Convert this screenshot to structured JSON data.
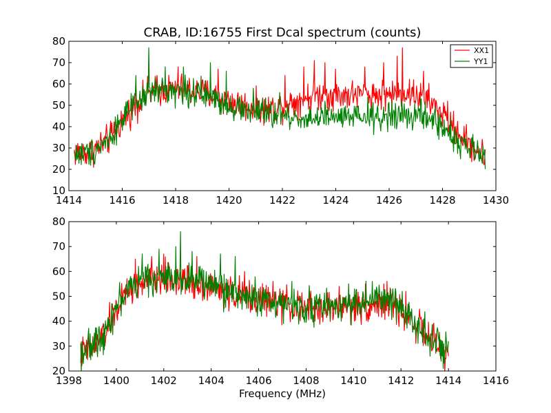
{
  "chart_data": [
    {
      "type": "line",
      "title": "CRAB, ID:16755 First Dcal spectrum (counts)",
      "xlabel": "",
      "ylabel": "",
      "xlim": [
        1414,
        1430
      ],
      "ylim": [
        10,
        80
      ],
      "xticks": [
        1414,
        1416,
        1418,
        1420,
        1422,
        1424,
        1426,
        1428,
        1430
      ],
      "yticks": [
        10,
        20,
        30,
        40,
        50,
        60,
        70,
        80
      ],
      "grid": false,
      "legend": {
        "placement": "top-right",
        "entries": [
          "XX1",
          "YY1"
        ]
      },
      "series": [
        {
          "name": "XX1",
          "color": "#ff0000",
          "points": [
            [
              1414.2,
              28
            ],
            [
              1414.8,
              28
            ],
            [
              1415.5,
              34
            ],
            [
              1416.0,
              43
            ],
            [
              1416.5,
              50
            ],
            [
              1417.0,
              56
            ],
            [
              1417.5,
              57
            ],
            [
              1418.0,
              58
            ],
            [
              1418.5,
              57
            ],
            [
              1419.0,
              56
            ],
            [
              1419.5,
              54
            ],
            [
              1420.0,
              52
            ],
            [
              1420.5,
              50
            ],
            [
              1421.0,
              49
            ],
            [
              1421.5,
              48
            ],
            [
              1422.0,
              50
            ],
            [
              1422.5,
              52
            ],
            [
              1423.0,
              54
            ],
            [
              1423.5,
              55
            ],
            [
              1424.0,
              55
            ],
            [
              1424.5,
              55
            ],
            [
              1425.0,
              55
            ],
            [
              1425.5,
              55
            ],
            [
              1426.0,
              55
            ],
            [
              1426.5,
              56
            ],
            [
              1427.0,
              55
            ],
            [
              1427.5,
              52
            ],
            [
              1428.0,
              46
            ],
            [
              1428.5,
              38
            ],
            [
              1429.0,
              32
            ],
            [
              1429.6,
              26
            ]
          ],
          "spikes": [
            [
              1416.5,
              60
            ],
            [
              1417.3,
              64
            ],
            [
              1418.1,
              68
            ],
            [
              1419.6,
              67
            ],
            [
              1422.1,
              64
            ],
            [
              1422.8,
              68
            ],
            [
              1423.2,
              71
            ],
            [
              1423.6,
              70
            ],
            [
              1424.0,
              67
            ],
            [
              1425.1,
              68
            ],
            [
              1425.8,
              70
            ],
            [
              1426.3,
              73
            ],
            [
              1426.5,
              77
            ],
            [
              1427.3,
              66
            ],
            [
              1428.2,
              52
            ]
          ]
        },
        {
          "name": "YY1",
          "color": "#008000",
          "points": [
            [
              1414.2,
              27
            ],
            [
              1414.8,
              28
            ],
            [
              1415.5,
              34
            ],
            [
              1416.0,
              44
            ],
            [
              1416.5,
              50
            ],
            [
              1417.0,
              56
            ],
            [
              1417.5,
              57
            ],
            [
              1418.0,
              57
            ],
            [
              1418.5,
              56
            ],
            [
              1419.0,
              55
            ],
            [
              1419.5,
              53
            ],
            [
              1420.0,
              50
            ],
            [
              1420.5,
              48
            ],
            [
              1421.0,
              47
            ],
            [
              1421.5,
              46
            ],
            [
              1422.0,
              45
            ],
            [
              1422.5,
              44
            ],
            [
              1423.0,
              44
            ],
            [
              1423.5,
              44
            ],
            [
              1424.0,
              44
            ],
            [
              1424.5,
              44
            ],
            [
              1425.0,
              44
            ],
            [
              1425.5,
              44
            ],
            [
              1426.0,
              45
            ],
            [
              1426.5,
              45
            ],
            [
              1427.0,
              45
            ],
            [
              1427.5,
              44
            ],
            [
              1428.0,
              40
            ],
            [
              1428.5,
              34
            ],
            [
              1429.0,
              30
            ],
            [
              1429.6,
              25
            ]
          ],
          "spikes": [
            [
              1416.5,
              64
            ],
            [
              1417.0,
              77
            ],
            [
              1417.6,
              68
            ],
            [
              1418.3,
              68
            ],
            [
              1419.3,
              70
            ],
            [
              1419.9,
              66
            ],
            [
              1420.9,
              58
            ],
            [
              1421.9,
              56
            ],
            [
              1423.6,
              52
            ],
            [
              1425.2,
              54
            ],
            [
              1426.1,
              52
            ],
            [
              1427.2,
              53
            ]
          ]
        }
      ]
    },
    {
      "type": "line",
      "title": "",
      "xlabel": "Frequency (MHz)",
      "ylabel": "",
      "xlim": [
        1398,
        1416
      ],
      "ylim": [
        20,
        80
      ],
      "xticks": [
        1398,
        1400,
        1402,
        1404,
        1406,
        1408,
        1410,
        1412,
        1414,
        1416
      ],
      "yticks": [
        20,
        30,
        40,
        50,
        60,
        70,
        80
      ],
      "grid": false,
      "legend": null,
      "series": [
        {
          "name": "XX1",
          "color": "#ff0000",
          "points": [
            [
              1398.5,
              27
            ],
            [
              1399.0,
              29
            ],
            [
              1399.5,
              35
            ],
            [
              1400.0,
              45
            ],
            [
              1400.5,
              52
            ],
            [
              1401.0,
              55
            ],
            [
              1401.5,
              56
            ],
            [
              1402.0,
              57
            ],
            [
              1402.5,
              57
            ],
            [
              1403.0,
              56
            ],
            [
              1403.5,
              55
            ],
            [
              1404.0,
              54
            ],
            [
              1404.5,
              52
            ],
            [
              1405.0,
              51
            ],
            [
              1405.5,
              50
            ],
            [
              1406.0,
              49
            ],
            [
              1406.5,
              48
            ],
            [
              1407.0,
              47
            ],
            [
              1407.5,
              46
            ],
            [
              1408.0,
              45
            ],
            [
              1408.5,
              45
            ],
            [
              1409.0,
              45
            ],
            [
              1409.5,
              46
            ],
            [
              1410.0,
              46
            ],
            [
              1410.5,
              46
            ],
            [
              1411.0,
              47
            ],
            [
              1411.5,
              47
            ],
            [
              1412.0,
              44
            ],
            [
              1412.5,
              40
            ],
            [
              1413.0,
              35
            ],
            [
              1413.5,
              30
            ],
            [
              1414.0,
              26
            ]
          ],
          "spikes": [
            [
              1400.8,
              65
            ],
            [
              1401.5,
              66
            ],
            [
              1402.0,
              67
            ],
            [
              1403.4,
              66
            ],
            [
              1405.4,
              60
            ],
            [
              1406.6,
              56
            ],
            [
              1409.4,
              54
            ],
            [
              1410.5,
              55
            ],
            [
              1411.4,
              56
            ],
            [
              1412.2,
              52
            ]
          ]
        },
        {
          "name": "YY1",
          "color": "#008000",
          "points": [
            [
              1398.5,
              28
            ],
            [
              1399.0,
              30
            ],
            [
              1399.5,
              36
            ],
            [
              1400.0,
              46
            ],
            [
              1400.5,
              53
            ],
            [
              1401.0,
              56
            ],
            [
              1401.5,
              57
            ],
            [
              1402.0,
              57
            ],
            [
              1402.5,
              58
            ],
            [
              1403.0,
              57
            ],
            [
              1403.5,
              56
            ],
            [
              1404.0,
              55
            ],
            [
              1404.5,
              53
            ],
            [
              1405.0,
              51
            ],
            [
              1405.5,
              50
            ],
            [
              1406.0,
              49
            ],
            [
              1406.5,
              48
            ],
            [
              1407.0,
              47
            ],
            [
              1407.5,
              46
            ],
            [
              1408.0,
              46
            ],
            [
              1408.5,
              46
            ],
            [
              1409.0,
              46
            ],
            [
              1409.5,
              47
            ],
            [
              1410.0,
              47
            ],
            [
              1410.5,
              48
            ],
            [
              1411.0,
              49
            ],
            [
              1411.5,
              48
            ],
            [
              1412.0,
              46
            ],
            [
              1412.5,
              41
            ],
            [
              1413.0,
              36
            ],
            [
              1413.5,
              31
            ],
            [
              1414.0,
              27
            ]
          ],
          "spikes": [
            [
              1400.6,
              58
            ],
            [
              1401.1,
              67
            ],
            [
              1401.8,
              69
            ],
            [
              1402.5,
              70
            ],
            [
              1402.7,
              76
            ],
            [
              1403.2,
              68
            ],
            [
              1404.4,
              67
            ],
            [
              1405.0,
              66
            ],
            [
              1407.4,
              56
            ],
            [
              1409.8,
              55
            ],
            [
              1410.8,
              56
            ]
          ]
        }
      ]
    }
  ]
}
